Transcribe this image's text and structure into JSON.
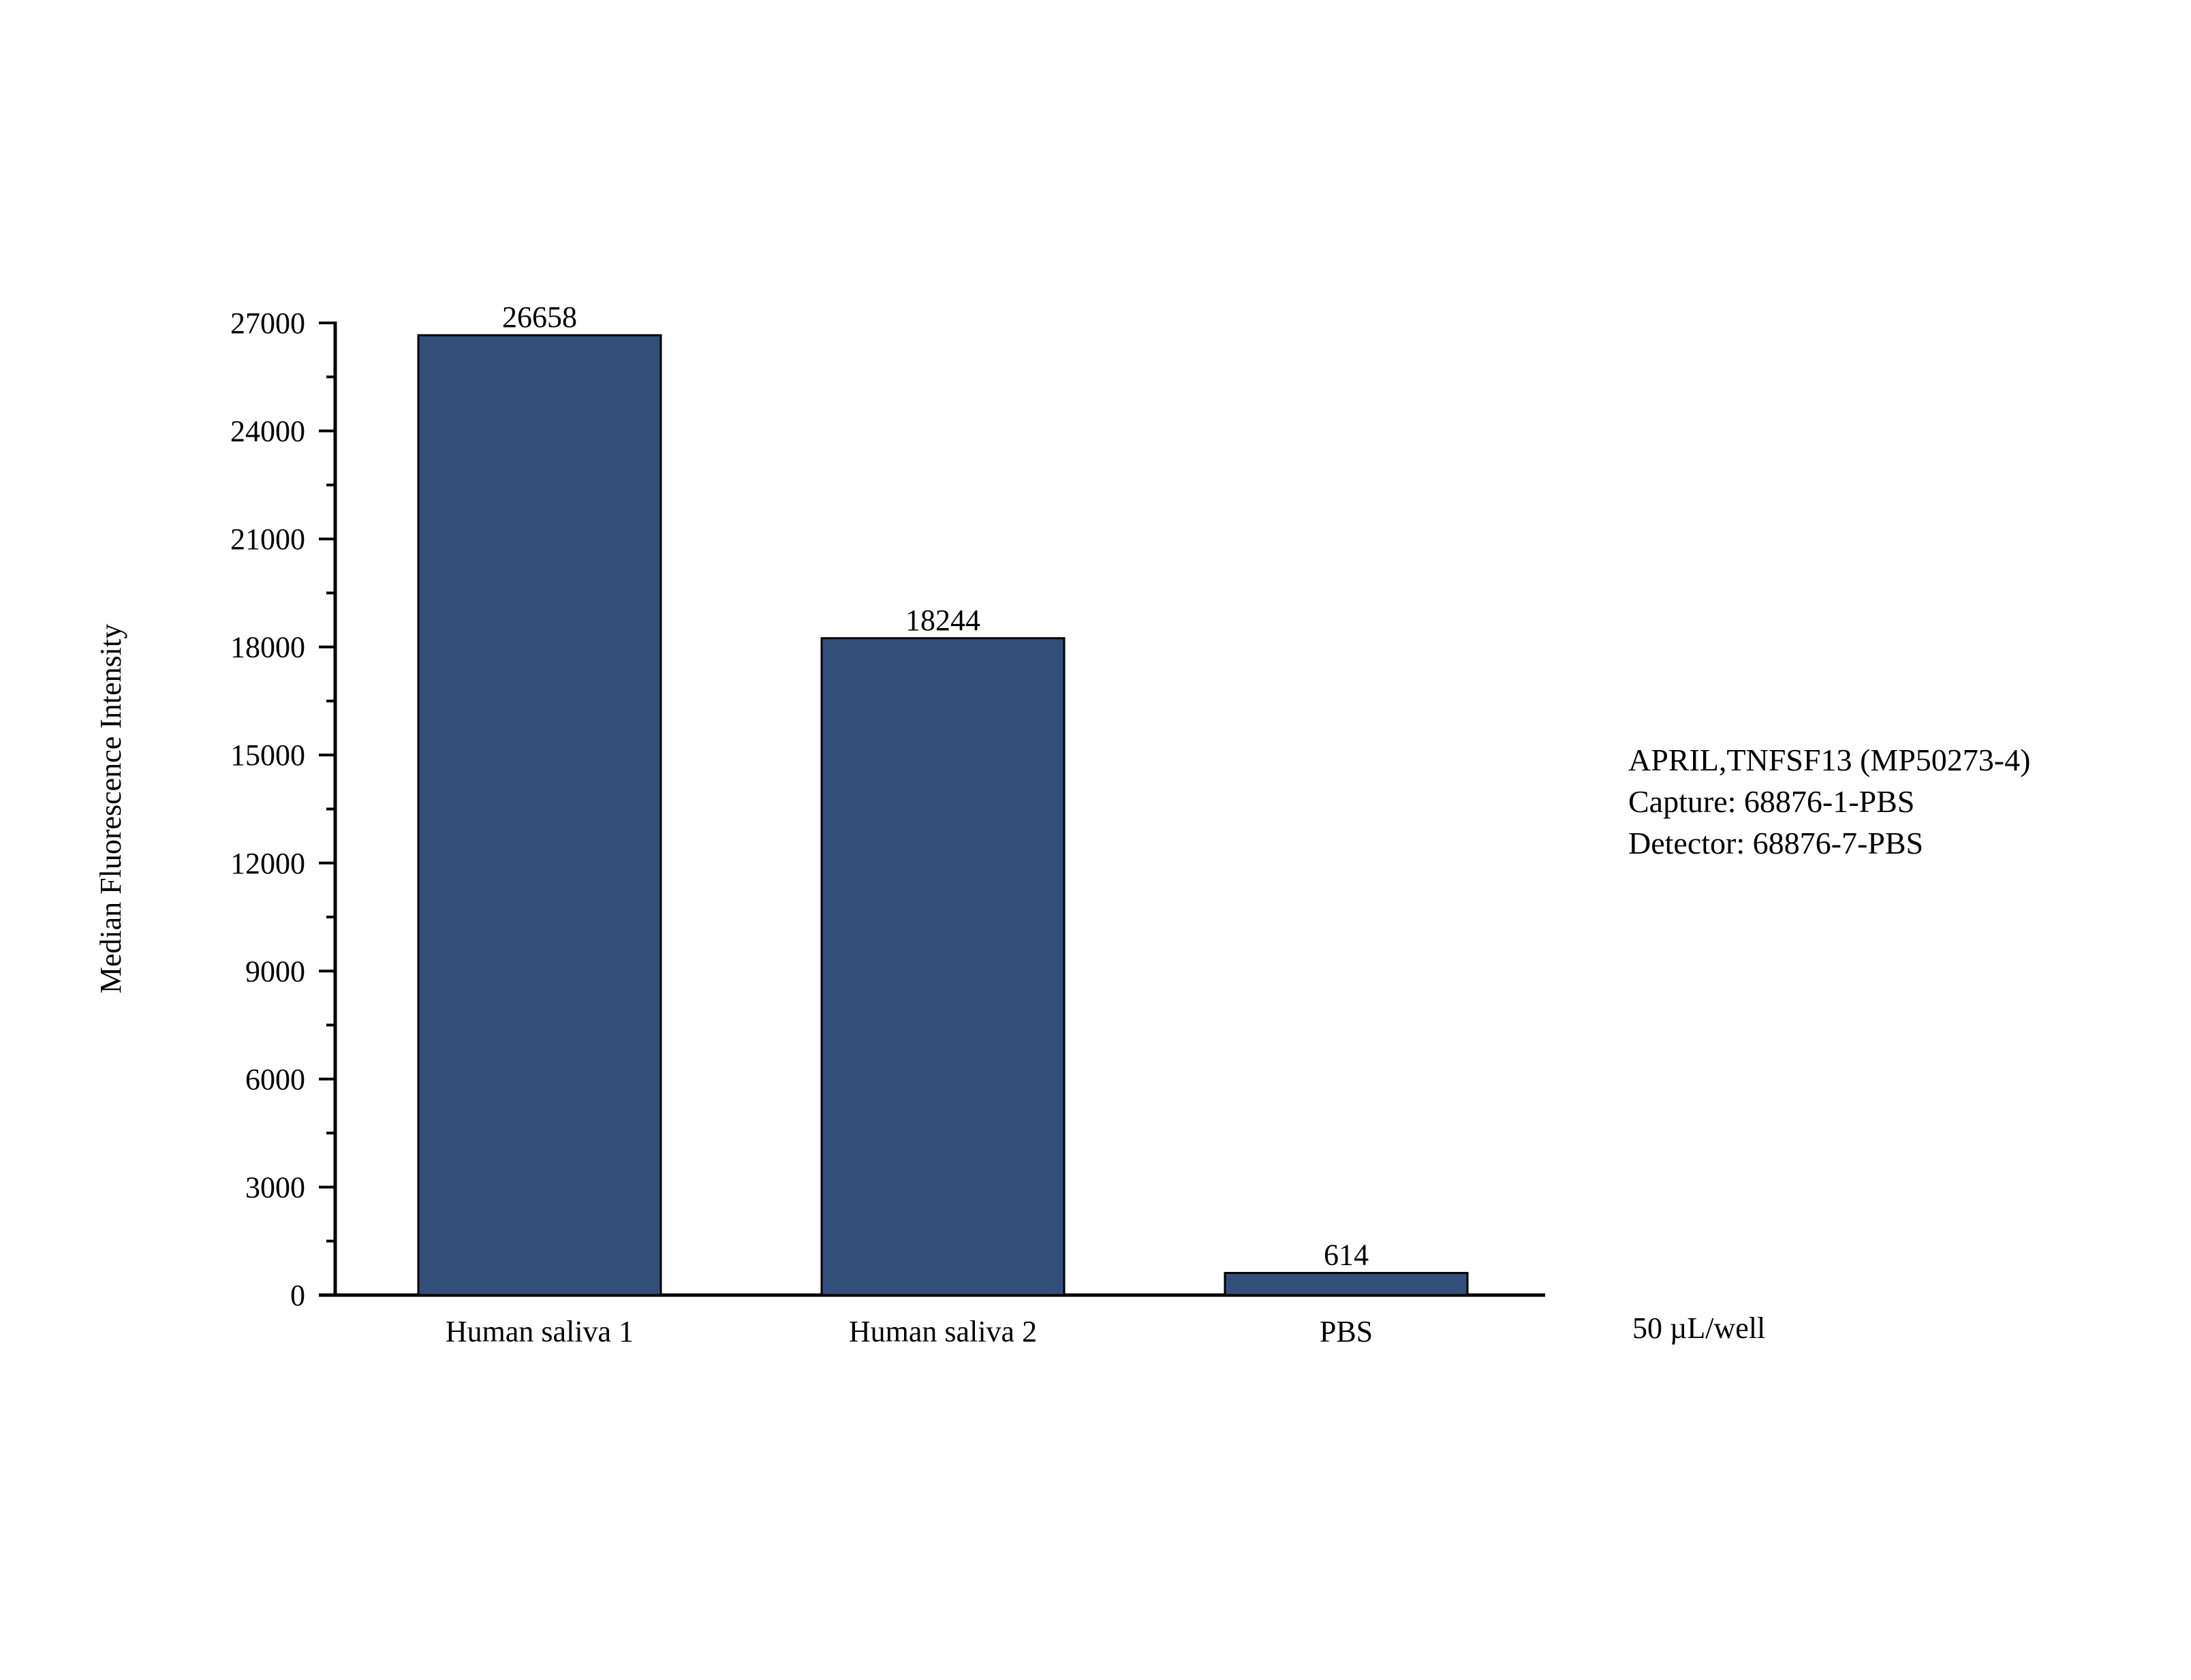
{
  "chart_data": {
    "type": "bar",
    "title": "",
    "xlabel": "",
    "ylabel": "Median Fluorescence Intensity",
    "categories": [
      "Human saliva 1",
      "Human saliva 2",
      "PBS"
    ],
    "values": [
      26658,
      18244,
      614
    ],
    "data_labels": [
      "26658",
      "18244",
      "614"
    ],
    "ylim": [
      0,
      27000
    ],
    "yticks": [
      0,
      3000,
      6000,
      9000,
      12000,
      15000,
      18000,
      21000,
      24000,
      27000
    ],
    "grid": false,
    "bar_color": "#324f7a",
    "bar_edge_color": "#000000"
  },
  "annotation": {
    "lines": [
      "APRIL,TNFSF13 (MP50273-4)",
      "Capture: 68876-1-PBS",
      "Detector: 68876-7-PBS"
    ],
    "unit_note": "50 µL/well"
  }
}
